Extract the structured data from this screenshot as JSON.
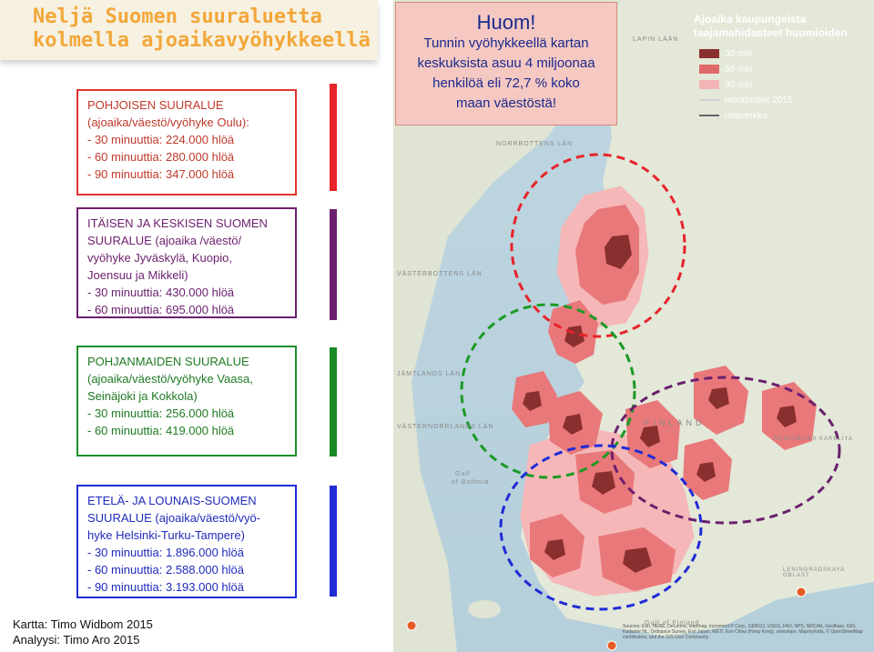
{
  "title": {
    "line1": "Neljä Suomen suuraluetta",
    "line2": "kolmella ajoaikavyöhykkeellä"
  },
  "regions": {
    "north": {
      "heading": "POHJOISEN SUURALUE",
      "subheading": "(ajoaika/väestö/vyöhyke Oulu):",
      "lines": [
        "-   30 minuuttia:  224.000 hlöä",
        "-   60 minuuttia: 280.000 hlöä",
        "-   90 minuuttia: 347.000 hlöä"
      ],
      "color": "#e0342f"
    },
    "east": {
      "heading": "ITÄISEN JA KESKISEN SUOMEN",
      "subheading_lines": [
        "SUURALUE (ajoaika /väestö/",
        "vyöhyke Jyväskylä, Kuopio,",
        "Joensuu ja Mikkeli)"
      ],
      "lines": [
        "-   30 minuuttia:  430.000 hlöä",
        "-   60 minuuttia: 695.000 hlöä"
      ],
      "color": "#6b1f6e"
    },
    "west": {
      "heading": "POHJANMAIDEN SUURALUE",
      "subheading_lines": [
        "(ajoaika/väestö/vyöhyke Vaasa,",
        "Seinäjoki ja Kokkola)"
      ],
      "lines": [
        "-   30 minuuttia:  256.000 hlöä",
        "-   60 minuuttia: 419.000 hlöä"
      ],
      "color": "#1f8f2a"
    },
    "south": {
      "heading": "ETELÄ- JA LOUNAIS-SUOMEN",
      "subheading_lines": [
        "SUURALUE (ajoaika/väestö/vyö-",
        "hyke Helsinki-Turku-Tampere)"
      ],
      "lines": [
        "-   30 minuuttia: 1.896.000 hlöä",
        "-   60 minuuttia: 2.588.000 hlöä",
        "-   90 minuuttia: 3.193.000 hlöä"
      ],
      "color": "#1f2bd6"
    }
  },
  "credits": {
    "map": "Kartta: Timo Widbom 2015",
    "analysis": "Analyysi: Timo Aro 2015"
  },
  "huom": {
    "title": "Huom!",
    "lines": [
      "Tunnin vyöhykkeellä kartan",
      "keskuksista asuu 4 miljoonaa",
      "henkilöä  eli 72,7 % koko",
      "maan väestöstä!"
    ]
  },
  "legend": {
    "title_line1": "Ajoaika kaupungeista",
    "title_line2": "taajamahidasteet huomioiden",
    "items": [
      {
        "label": "30 min",
        "color": "#8a2f2f"
      },
      {
        "label": "60 min",
        "color": "#e06a6a"
      },
      {
        "label": "90 min",
        "color": "#f2b4b4"
      },
      {
        "label": "moottoritiet 2015",
        "color": "#d0d0d0"
      },
      {
        "label": "rataverkko",
        "color": "#666666"
      }
    ]
  },
  "map_labels": {
    "lappin": "LAPIN LÄÄN",
    "norrbottens": "NORRBOTTENS LÄN",
    "vasterbottens": "VÄSTERBOTTENS LÄN",
    "vasternorrlands": "VÄSTERNORRLANDS LÄN",
    "jamtlands": "JÄMTLANDS LÄN",
    "finland": "FINLAND",
    "gulf_bothnia_1": "Gulf",
    "gulf_bothnia_2": "of Bothnia",
    "gulf_finland": "Gulf of Finland",
    "leningrad": "LENINGRADSKAYA OBLAST",
    "karelia": "RESPUBLIKA KARELIYA"
  },
  "sources": "Sources: Esri, HERE, DeLorme, Intermap, increment P Corp., GEBCO, USGS, FAO, NPS, NRCAN, GeoBase, IGN, Kadaster NL, Ordnance Survey, Esri Japan, METI, Esri China (Hong Kong), swisstopo, MapmyIndia, © OpenStreetMap contributors, and the GIS User Community"
}
